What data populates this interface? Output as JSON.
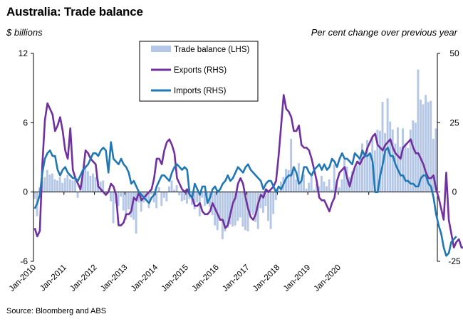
{
  "title": "Australia: Trade balance",
  "unit_left": "$ billions",
  "unit_right": "Per cent change over previous year",
  "source": "Source: Bloomberg and ABS",
  "colors": {
    "trade_balance": "#b4c7e7",
    "exports": "#7030a0",
    "imports": "#1f77b4",
    "axis": "#000000"
  },
  "chart_data": {
    "type": "bar",
    "x_tick_labels": [
      "Jan-2010",
      "Jan-2011",
      "Jan-2012",
      "Jan-2013",
      "Jan-2014",
      "Jan-2015",
      "Jan-2016",
      "Jan-2017",
      "Jan-2018",
      "Jan-2019",
      "Jan-2020"
    ],
    "y_left": {
      "ticks": [
        "12",
        "6",
        "0",
        "-6"
      ],
      "ylim": [
        -6,
        12
      ]
    },
    "y_right": {
      "ticks": [
        "50",
        "25",
        "0",
        "-25"
      ],
      "ylim": [
        -25,
        50
      ]
    },
    "grid": false,
    "legend_position": "top-center",
    "series": [
      {
        "name": "Trade balance (LHS)",
        "kind": "bar",
        "axis": "left",
        "start": "2010-01",
        "values": [
          -0.6,
          -2.1,
          0.4,
          0.9,
          1.3,
          1.9,
          1.5,
          1.6,
          1.1,
          1.0,
          1.3,
          0.8,
          1.2,
          1.5,
          1.1,
          1.0,
          1.4,
          -0.5,
          0.5,
          1.5,
          2.3,
          1.8,
          1.4,
          1.6,
          1.3,
          1.1,
          0.9,
          1.0,
          -0.3,
          0.1,
          -0.8,
          -2.7,
          -1.0,
          -1.2,
          -0.4,
          -1.6,
          -2.4,
          -1.5,
          -2.2,
          -2.4,
          -3.6,
          -0.9,
          -1.7,
          -0.9,
          -0.6,
          -1.4,
          -0.2,
          -0.9,
          -1.4,
          0.4,
          -1.2,
          -0.5,
          -0.8,
          0.5,
          1.0,
          0.2,
          0.6,
          -0.3,
          -0.8,
          -0.7,
          -1.0,
          -0.6,
          -1.1,
          -1.5,
          -0.9,
          -2.1,
          -0.5,
          -1.2,
          -0.8,
          -1.3,
          -2.0,
          -2.9,
          -3.3,
          -2.5,
          -4.1,
          -3.4,
          -3.1,
          -2.8,
          -3.0,
          -2.9,
          -2.5,
          -2.2,
          -3.0,
          -3.3,
          -3.4,
          -1.8,
          -2.0,
          -2.6,
          -3.2,
          -1.4,
          -1.8,
          -1.2,
          -2.5,
          -3.2,
          -1.9,
          -0.7,
          0.2,
          0.9,
          1.3,
          2.0,
          1.9,
          4.6,
          2.2,
          1.1,
          2.5,
          0.9,
          1.5,
          0.3,
          0.8,
          1.4,
          0.2,
          0.7,
          0.5,
          1.4,
          0.9,
          0.5,
          1.1,
          0.2,
          2.4,
          0.9,
          0.4,
          1.1,
          2.8,
          2.2,
          1.3,
          1.8,
          2.1,
          2.3,
          2.9,
          4.2,
          3.1,
          4.5,
          3.2,
          4.8,
          3.6,
          5.4,
          5.3,
          7.8,
          5.1,
          8.1,
          6.1,
          5.4,
          4.2,
          5.6,
          3.9,
          5.5,
          4.2,
          3.8,
          5.4,
          6.2,
          6.0,
          10.6,
          8.0,
          7.6,
          8.4,
          7.8,
          7.9,
          4.6,
          5.5
        ]
      },
      {
        "name": "Exports (RHS)",
        "kind": "line",
        "axis": "right",
        "start": "2010-01",
        "values": [
          -13,
          -16,
          -14,
          10,
          26,
          32,
          30,
          28,
          22,
          24,
          27,
          22,
          15,
          12,
          23,
          8,
          5,
          3,
          1,
          7,
          15,
          14,
          12,
          11,
          10,
          2,
          1,
          0,
          -1,
          0,
          3,
          2,
          -1,
          -12,
          -12,
          -11,
          -8,
          -8,
          -7,
          -2,
          -3,
          0,
          -3,
          -2,
          -1,
          0,
          1,
          5,
          12,
          12,
          10,
          15,
          18,
          19,
          17,
          14,
          5,
          3,
          1,
          0,
          1,
          -1,
          -2,
          -5,
          -5,
          -4,
          -7,
          -8,
          -8,
          -7,
          -4,
          -6,
          -8,
          -10,
          -10,
          -13,
          -12,
          -8,
          -4,
          -2,
          3,
          5,
          3,
          -2,
          -6,
          -9,
          -10,
          -8,
          -4,
          -1,
          -2,
          1,
          0,
          1,
          2,
          4,
          13,
          24,
          35,
          30,
          29,
          27,
          22,
          22,
          24,
          17,
          16,
          16,
          15,
          12,
          8,
          4,
          -2,
          -3,
          -3,
          -5,
          -7,
          -4,
          -2,
          4,
          7,
          8,
          9,
          5,
          2,
          6,
          9,
          11,
          10,
          12,
          13,
          16,
          18,
          20,
          21,
          17,
          16,
          15,
          17,
          18,
          19,
          16,
          14,
          13,
          12,
          16,
          17,
          18,
          19,
          16,
          14,
          14,
          12,
          10,
          7,
          5,
          5,
          6,
          1,
          -2,
          -6,
          -10,
          7,
          -10,
          -15,
          -20,
          -18,
          -17,
          -20,
          -20
        ]
      },
      {
        "name": "Imports (RHS)",
        "kind": "line",
        "axis": "right",
        "start": "2010-01",
        "values": [
          -6,
          -4,
          -1,
          7,
          12,
          14,
          15,
          13,
          13,
          8,
          6,
          8,
          9,
          7,
          6,
          5,
          5,
          4,
          6,
          8,
          9,
          10,
          12,
          14,
          14,
          13,
          15,
          16,
          15,
          7,
          18,
          12,
          11,
          10,
          12,
          10,
          9,
          7,
          3,
          4,
          2,
          0,
          -1,
          -2,
          -3,
          -4,
          -2,
          -1,
          2,
          4,
          6,
          6,
          5,
          4,
          7,
          9,
          10,
          9,
          8,
          9,
          8,
          -1,
          -2,
          3,
          1,
          -1,
          2,
          2,
          -4,
          -2,
          1,
          2,
          0,
          1,
          3,
          4,
          6,
          4,
          5,
          7,
          9,
          8,
          7,
          9,
          10,
          8,
          7,
          6,
          5,
          4,
          1,
          3,
          4,
          4,
          2,
          0,
          2,
          1,
          3,
          5,
          6,
          6,
          9,
          7,
          3,
          4,
          9,
          9,
          7,
          6,
          8,
          9,
          10,
          8,
          10,
          8,
          9,
          12,
          11,
          9,
          12,
          14,
          12,
          12,
          11,
          10,
          14,
          13,
          12,
          15,
          13,
          13,
          14,
          11,
          0,
          0,
          6,
          10,
          15,
          16,
          13,
          13,
          10,
          8,
          6,
          6,
          4,
          4,
          3,
          3,
          2,
          2,
          5,
          6,
          6,
          3,
          2,
          -2,
          -8,
          -12,
          -15,
          -20,
          -23,
          -22,
          -18,
          -17,
          -16
        ]
      }
    ]
  }
}
